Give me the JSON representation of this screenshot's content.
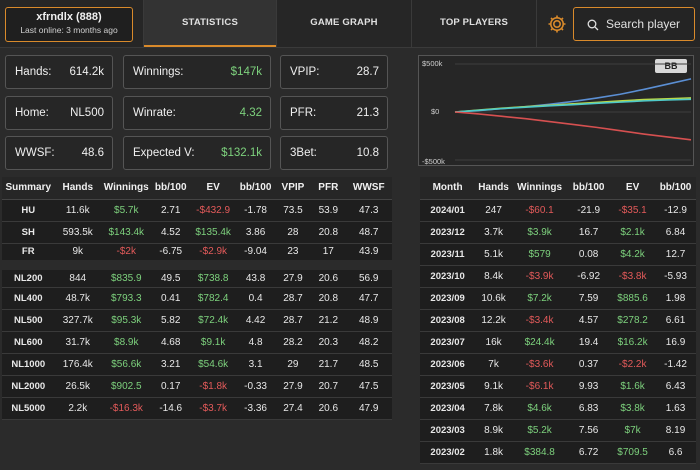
{
  "player": {
    "name": "xfrndlx (888)",
    "last_online": "Last online: 3 months ago"
  },
  "tabs": {
    "statistics": "STATISTICS",
    "game_graph": "GAME GRAPH",
    "top_players": "TOP PLAYERS"
  },
  "search": {
    "label": "Search player"
  },
  "cards": {
    "hands": {
      "label": "Hands:",
      "value": "614.2k"
    },
    "winnings": {
      "label": "Winnings:",
      "value": "$147k"
    },
    "vpip": {
      "label": "VPIP:",
      "value": "28.7"
    },
    "home": {
      "label": "Home:",
      "value": "NL500"
    },
    "winrate": {
      "label": "Winrate:",
      "value": "4.32"
    },
    "pfr": {
      "label": "PFR:",
      "value": "21.3"
    },
    "wwsf": {
      "label": "WWSF:",
      "value": "48.6"
    },
    "expected": {
      "label": "Expected V:",
      "value": "$132.1k"
    },
    "threebet": {
      "label": "3Bet:",
      "value": "10.8"
    }
  },
  "chart_data": {
    "type": "line",
    "badge": "BB",
    "yticks": [
      "$500k",
      "$0",
      "-$500k"
    ],
    "ylim": [
      -500,
      500
    ],
    "x": [
      0,
      10,
      20,
      30,
      40,
      50,
      60,
      70,
      80,
      90,
      100
    ],
    "series": [
      {
        "color": "#5b8fd4",
        "values": [
          0,
          15,
          35,
          55,
          80,
          110,
          145,
          185,
          235,
          290,
          345
        ]
      },
      {
        "color": "#b8d84a",
        "values": [
          0,
          20,
          40,
          55,
          70,
          85,
          100,
          115,
          130,
          138,
          147
        ]
      },
      {
        "color": "#4ec9c9",
        "values": [
          0,
          18,
          36,
          50,
          64,
          76,
          90,
          103,
          116,
          125,
          132
        ]
      },
      {
        "color": "#d65050",
        "values": [
          0,
          -20,
          -45,
          -70,
          -100,
          -130,
          -160,
          -195,
          -230,
          -260,
          -290
        ]
      }
    ]
  },
  "summary_table": {
    "headers": [
      "Summary",
      "Hands",
      "Winnings",
      "bb/100",
      "EV",
      "bb/100",
      "VPIP",
      "PFR",
      "WWSF"
    ],
    "rows": [
      {
        "cells": [
          "HU",
          "11.6k",
          "$5.7k",
          "2.71",
          "-$432.9",
          "-1.78",
          "73.5",
          "53.9",
          "47.3"
        ],
        "win": "g",
        "ev": "r",
        "gap": false
      },
      {
        "cells": [
          "SH",
          "593.5k",
          "$143.4k",
          "4.52",
          "$135.4k",
          "3.86",
          "28",
          "20.8",
          "48.7"
        ],
        "win": "g",
        "ev": "g",
        "gap": false
      },
      {
        "cells": [
          "FR",
          "9k",
          "-$2k",
          "-6.75",
          "-$2.9k",
          "-9.04",
          "23",
          "17",
          "43.9"
        ],
        "win": "r",
        "ev": "r",
        "gap": false
      },
      {
        "cells": [
          "NL200",
          "844",
          "$835.9",
          "49.5",
          "$738.8",
          "43.8",
          "27.9",
          "20.6",
          "56.9"
        ],
        "win": "g",
        "ev": "g",
        "gap": true
      },
      {
        "cells": [
          "NL400",
          "48.7k",
          "$793.3",
          "0.41",
          "$782.4",
          "0.4",
          "28.7",
          "20.8",
          "47.7"
        ],
        "win": "g",
        "ev": "g",
        "gap": false
      },
      {
        "cells": [
          "NL500",
          "327.7k",
          "$95.3k",
          "5.82",
          "$72.4k",
          "4.42",
          "28.7",
          "21.2",
          "48.9"
        ],
        "win": "g",
        "ev": "g",
        "gap": false
      },
      {
        "cells": [
          "NL600",
          "31.7k",
          "$8.9k",
          "4.68",
          "$9.1k",
          "4.8",
          "28.2",
          "20.3",
          "48.2"
        ],
        "win": "g",
        "ev": "g",
        "gap": false
      },
      {
        "cells": [
          "NL1000",
          "176.4k",
          "$56.6k",
          "3.21",
          "$54.6k",
          "3.1",
          "29",
          "21.7",
          "48.5"
        ],
        "win": "g",
        "ev": "g",
        "gap": false
      },
      {
        "cells": [
          "NL2000",
          "26.5k",
          "$902.5",
          "0.17",
          "-$1.8k",
          "-0.33",
          "27.9",
          "20.7",
          "47.5"
        ],
        "win": "g",
        "ev": "r",
        "gap": false
      },
      {
        "cells": [
          "NL5000",
          "2.2k",
          "-$16.3k",
          "-14.6",
          "-$3.7k",
          "-3.36",
          "27.4",
          "20.6",
          "47.9"
        ],
        "win": "r",
        "ev": "r",
        "gap": false
      }
    ]
  },
  "month_table": {
    "headers": [
      "Month",
      "Hands",
      "Winnings",
      "bb/100",
      "EV",
      "bb/100"
    ],
    "rows": [
      {
        "cells": [
          "2024/01",
          "247",
          "-$60.1",
          "-21.9",
          "-$35.1",
          "-12.9"
        ],
        "win": "r",
        "ev": "r"
      },
      {
        "cells": [
          "2023/12",
          "3.7k",
          "$3.9k",
          "16.7",
          "$2.1k",
          "6.84"
        ],
        "win": "g",
        "ev": "g"
      },
      {
        "cells": [
          "2023/11",
          "5.1k",
          "$579",
          "0.08",
          "$4.2k",
          "12.7"
        ],
        "win": "g",
        "ev": "g"
      },
      {
        "cells": [
          "2023/10",
          "8.4k",
          "-$3.9k",
          "-6.92",
          "-$3.8k",
          "-5.93"
        ],
        "win": "r",
        "ev": "r"
      },
      {
        "cells": [
          "2023/09",
          "10.6k",
          "$7.2k",
          "7.59",
          "$885.6",
          "1.98"
        ],
        "win": "g",
        "ev": "g"
      },
      {
        "cells": [
          "2023/08",
          "12.2k",
          "-$3.4k",
          "4.57",
          "$278.2",
          "6.61"
        ],
        "win": "r",
        "ev": "g"
      },
      {
        "cells": [
          "2023/07",
          "16k",
          "$24.4k",
          "19.4",
          "$16.2k",
          "16.9"
        ],
        "win": "g",
        "ev": "g"
      },
      {
        "cells": [
          "2023/06",
          "7k",
          "-$3.6k",
          "0.37",
          "-$2.2k",
          "-1.42"
        ],
        "win": "r",
        "ev": "r"
      },
      {
        "cells": [
          "2023/05",
          "9.1k",
          "-$6.1k",
          "9.93",
          "$1.6k",
          "6.43"
        ],
        "win": "r",
        "ev": "g"
      },
      {
        "cells": [
          "2023/04",
          "7.8k",
          "$4.6k",
          "6.83",
          "$3.8k",
          "1.63"
        ],
        "win": "g",
        "ev": "g"
      },
      {
        "cells": [
          "2023/03",
          "8.9k",
          "$5.2k",
          "7.56",
          "$7k",
          "8.19"
        ],
        "win": "g",
        "ev": "g"
      },
      {
        "cells": [
          "2023/02",
          "1.8k",
          "$384.8",
          "6.72",
          "$709.5",
          "6.6"
        ],
        "win": "g",
        "ev": "g"
      }
    ]
  }
}
